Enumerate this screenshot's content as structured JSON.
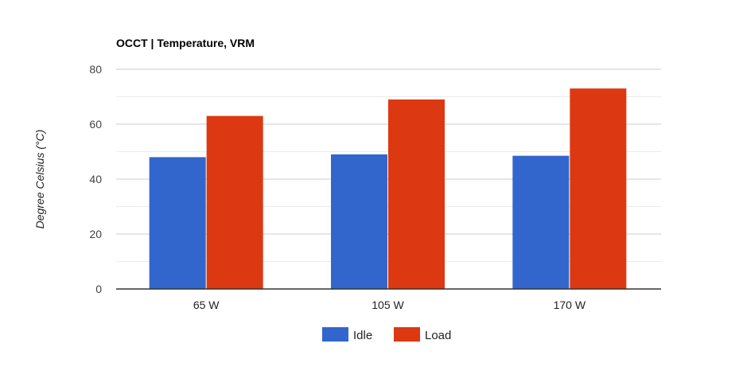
{
  "chart_data": {
    "type": "bar",
    "title": "OCCT | Temperature, VRM",
    "xlabel": "",
    "ylabel": "Degree Celsius (°C)",
    "categories": [
      "65 W",
      "105 W",
      "170 W"
    ],
    "series": [
      {
        "name": "Idle",
        "color": "#3366cc",
        "values": [
          48,
          49,
          48.5
        ]
      },
      {
        "name": "Load",
        "color": "#dc3912",
        "values": [
          63,
          69,
          73
        ]
      }
    ],
    "ylim": [
      0,
      80
    ],
    "yticks": [
      0,
      20,
      40,
      60,
      80
    ],
    "ytick_labels": [
      "0",
      "20",
      "40",
      "60",
      "80"
    ],
    "legend_position": "bottom",
    "grid": true
  }
}
